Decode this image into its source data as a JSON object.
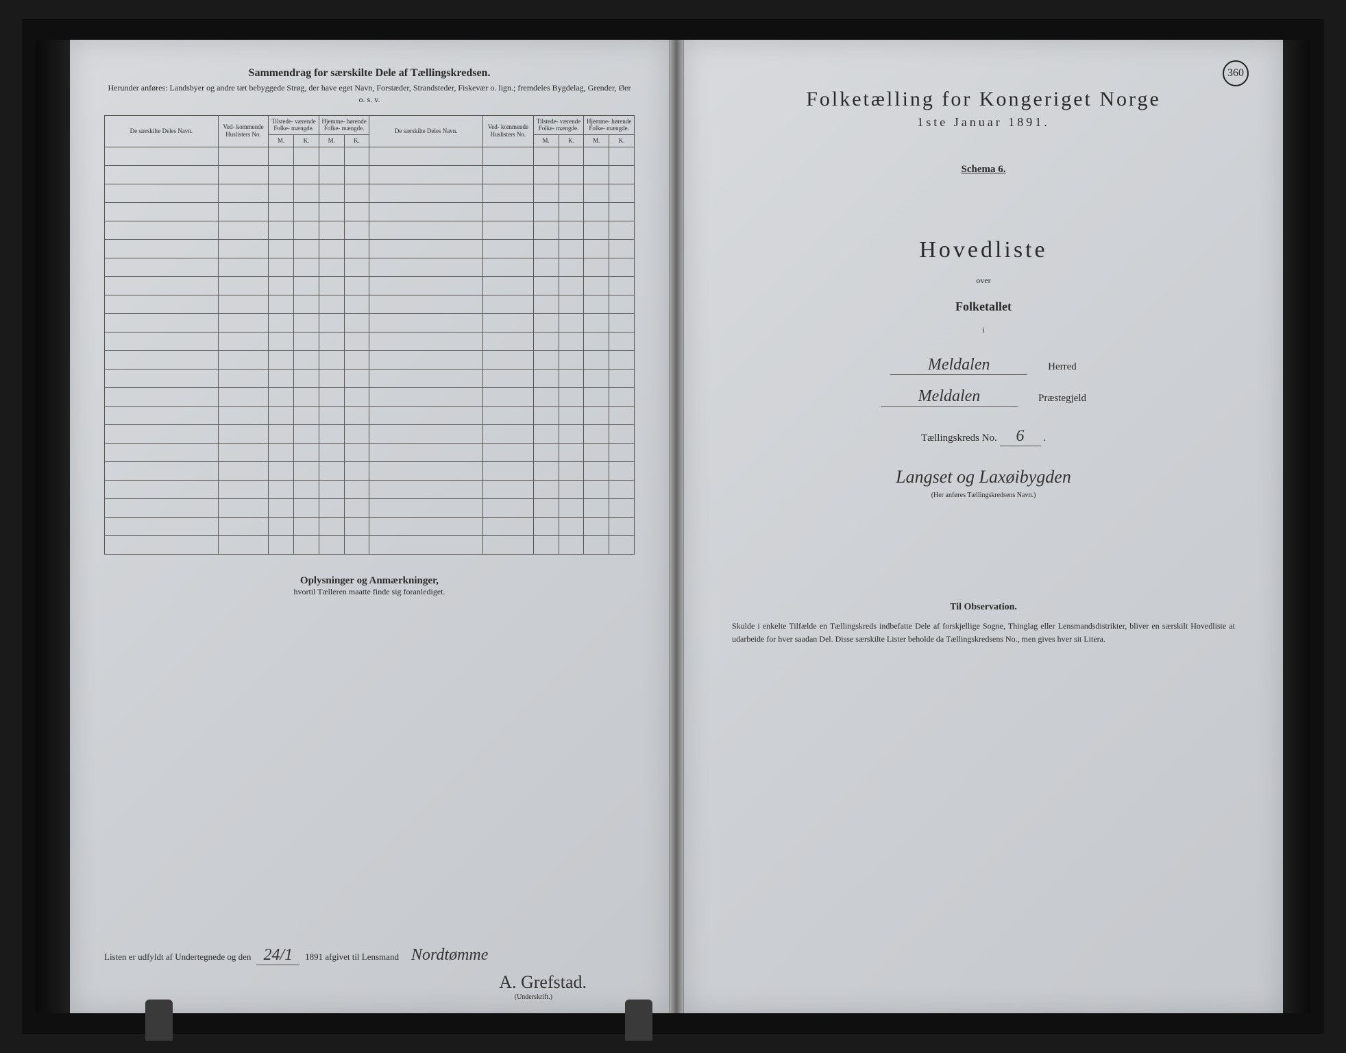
{
  "leftPage": {
    "title": "Sammendrag for særskilte Dele af Tællingskredsen.",
    "subtitle": "Herunder anføres: Landsbyer og andre tæt bebyggede Strøg, der have eget Navn, Forstæder, Strandsteder, Fiskevær o. lign.; fremdeles Bygdelag, Grender, Øer o. s. v.",
    "table": {
      "headers": {
        "navn": "De særskilte Deles Navn.",
        "huslisters": "Ved-\nkommende\nHuslisters\nNo.",
        "tilstede": "Tilstede-\nværende\nFolke-\nmængde.",
        "hjemme": "Hjemme-\nhørende\nFolke-\nmængde.",
        "m": "M.",
        "k": "K."
      },
      "rowCount": 22
    },
    "remarksTitle": "Oplysninger og Anmærkninger,",
    "remarksSub": "hvortil Tælleren maatte finde sig foranlediget.",
    "signatureText1": "Listen er udfyldt af Undertegnede og den",
    "signatureDate": "24/1",
    "signatureText2": "1891 afgivet til Lensmand",
    "signatureName1": "Nordtømme",
    "signatureName2": "A. Grefstad.",
    "underskrift": "(Underskrift.)"
  },
  "rightPage": {
    "pageNumber": "360",
    "censusTitle": "Folketælling for Kongeriget Norge",
    "censusDate": "1ste Januar 1891.",
    "schema": "Schema 6.",
    "hovedliste": "Hovedliste",
    "over": "over",
    "folketallet": "Folketallet",
    "i": "i",
    "herred": "Meldalen",
    "herredLabel": "Herred",
    "prestegjeld": "Meldalen",
    "prestegjeldLabel": "Præstegjeld",
    "kredsLabel": "Tællingskreds No.",
    "kredsNo": "6",
    "kredsName": "Langset og Laxøibygden",
    "kredsNote": "(Her anføres Tællingskredsens Navn.)",
    "obsTitle": "Til Observation.",
    "obsText": "Skulde i enkelte Tilfælde en Tællingskreds indbefatte Dele af forskjellige Sogne, Thinglag eller Lensmandsdistrikter, bliver en særskilt Hovedliste at udarbeide for hver saadan Del. Disse særskilte Lister beholde da Tællingskredsens No., men gives hver sit Litera."
  },
  "colors": {
    "pageBg": "#d2d5d9",
    "text": "#2a2a2a",
    "border": "#555555",
    "handwriting": "#333333",
    "bookBg": "#1a1a1a"
  }
}
